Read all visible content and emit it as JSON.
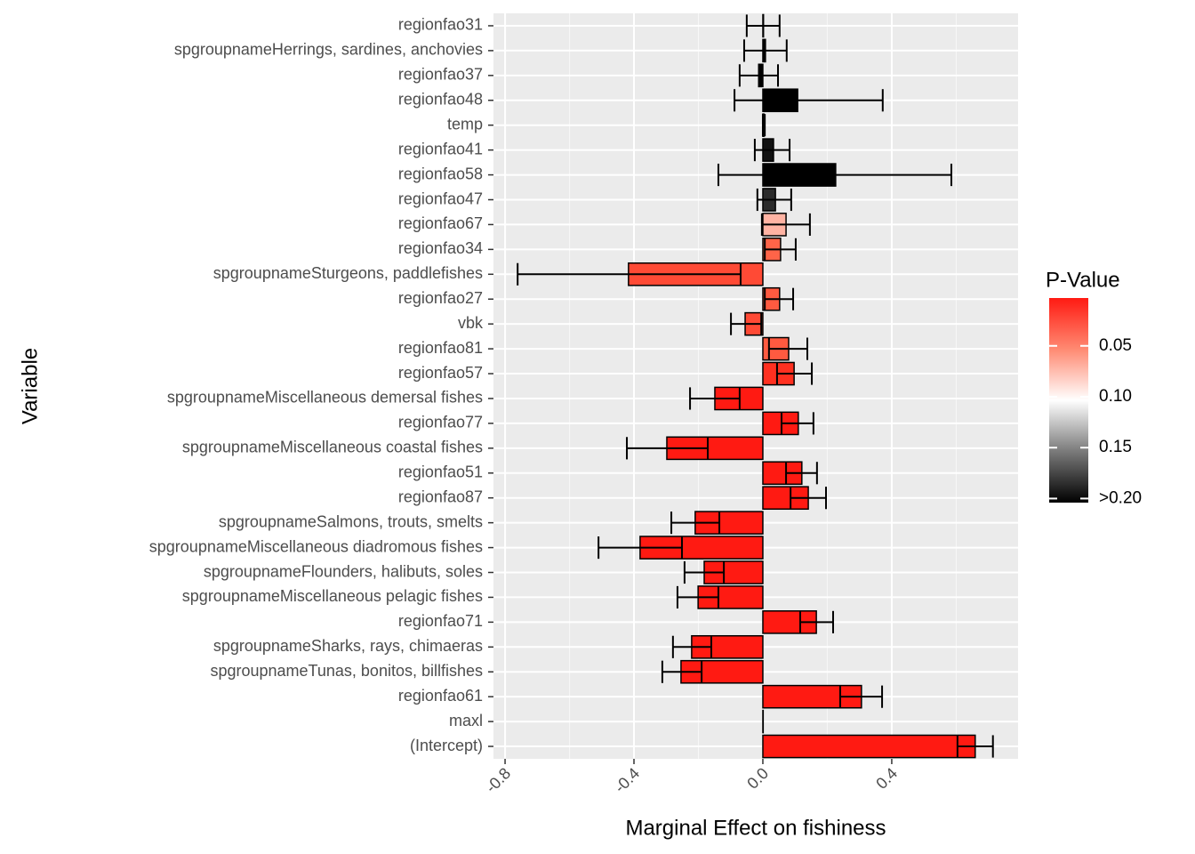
{
  "chart_data": {
    "type": "errorbar_barh",
    "xlabel": "Marginal Effect on fishiness",
    "ylabel": "Variable",
    "categories": [
      "regionfao31",
      "spgroupnameHerrings, sardines, anchovies",
      "regionfao37",
      "regionfao48",
      "temp",
      "regionfao41",
      "regionfao58",
      "regionfao47",
      "regionfao67",
      "regionfao34",
      "spgroupnameSturgeons, paddlefishes",
      "regionfao27",
      "vbk",
      "regionfao81",
      "regionfao57",
      "spgroupnameMiscellaneous demersal fishes",
      "regionfao77",
      "spgroupnameMiscellaneous coastal fishes",
      "regionfao51",
      "regionfao87",
      "spgroupnameSalmons, trouts, smelts",
      "spgroupnameMiscellaneous diadromous fishes",
      "spgroupnameFlounders, halibuts, soles",
      "spgroupnameMiscellaneous pelagic fishes",
      "regionfao71",
      "spgroupnameSharks, rays, chimaeras",
      "spgroupnameTunas, bonitos, billfishes",
      "regionfao61",
      "maxl",
      "(Intercept)"
    ],
    "values": [
      0.002,
      0.008,
      -0.013,
      0.108,
      0.003,
      0.033,
      0.226,
      0.039,
      0.072,
      0.055,
      -0.417,
      0.052,
      -0.055,
      0.08,
      0.097,
      -0.149,
      0.11,
      -0.298,
      0.121,
      0.141,
      -0.21,
      -0.381,
      -0.182,
      -0.201,
      0.166,
      -0.221,
      -0.254,
      0.306,
      0.001,
      0.659
    ],
    "error_low": [
      -0.05,
      -0.058,
      -0.072,
      -0.088,
      0.0,
      -0.025,
      -0.138,
      -0.017,
      -0.003,
      0.006,
      -0.761,
      0.006,
      -0.099,
      0.019,
      0.044,
      -0.226,
      0.058,
      -0.422,
      0.072,
      0.086,
      -0.284,
      -0.51,
      -0.243,
      -0.265,
      0.116,
      -0.279,
      -0.312,
      0.24,
      null,
      0.604
    ],
    "error_high": [
      0.052,
      0.074,
      0.047,
      0.372,
      0.006,
      0.083,
      0.585,
      0.088,
      0.146,
      0.102,
      -0.069,
      0.094,
      -0.005,
      0.138,
      0.152,
      -0.072,
      0.157,
      -0.171,
      0.168,
      0.196,
      -0.135,
      -0.251,
      -0.121,
      -0.138,
      0.218,
      -0.16,
      -0.19,
      0.37,
      null,
      0.714
    ],
    "colors": [
      "#000000",
      "#000000",
      "#000000",
      "#000000",
      "#000000",
      "#111111",
      "#000000",
      "#2a2a2a",
      "#ffb3a3",
      "#ff6448",
      "#ff4a35",
      "#ff5a40",
      "#ff4a35",
      "#ff5a40",
      "#ff3020",
      "#ff1a12",
      "#ff1a12",
      "#ff1a12",
      "#ff1a12",
      "#ff1a12",
      "#ff1a12",
      "#ff1a12",
      "#ff1a12",
      "#ff1a12",
      "#ff1a12",
      "#ff1a12",
      "#ff1a12",
      "#ff1a12",
      "#ff1a12",
      "#ff1a12"
    ],
    "xlim": [
      -0.836,
      0.792
    ],
    "xticks": [
      -0.8,
      -0.4,
      {
        "value": 0,
        "label": "0.0"
      },
      0.4
    ],
    "minor_xticks": [
      -0.6,
      -0.2,
      0.2,
      0.6
    ],
    "grid": true,
    "colorbar": {
      "title": "P-Value",
      "lim": [
        0.003,
        0.204
      ],
      "ticks": [
        0.05,
        {
          "value": 0.1,
          "label": "0.10"
        },
        0.15,
        {
          "value": 0.2,
          "label": ">0.20"
        }
      ],
      "colors": [
        "#ff1a12",
        "#ff8a72",
        "#ffffff",
        "#7a7a7a",
        "#000000"
      ]
    }
  }
}
